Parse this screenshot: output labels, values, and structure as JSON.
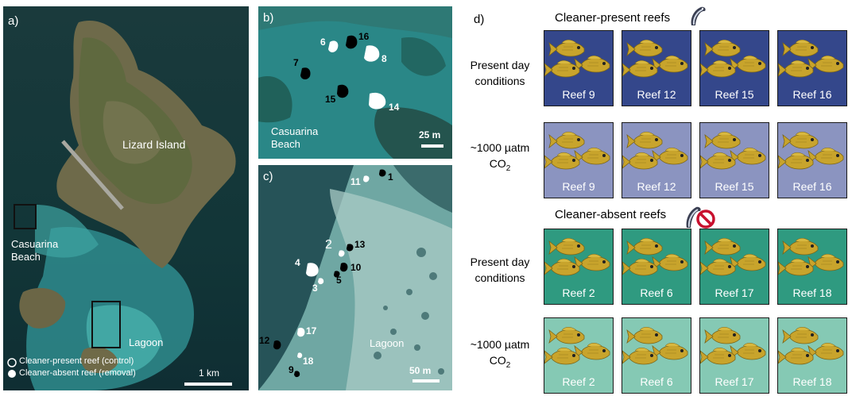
{
  "panel_a": {
    "letter": "a)",
    "island_label": "Lizard Island",
    "beach_label_1": "Casuarina",
    "beach_label_2": "Beach",
    "lagoon_label": "Lagoon",
    "legend_control": "Cleaner-present reef (control)",
    "legend_removal": "Cleaner-absent reef (removal)",
    "scale_label": "1 km"
  },
  "panel_b": {
    "letter": "b)",
    "beach_label_1": "Casuarina",
    "beach_label_2": "Beach",
    "scale_label": "25 m",
    "reef_numbers": {
      "r6": "6",
      "r16": "16",
      "r8": "8",
      "r7": "7",
      "r15": "15",
      "r14": "14"
    }
  },
  "panel_c": {
    "letter": "c)",
    "lagoon_label": "Lagoon",
    "scale_label": "50 m",
    "reef_numbers": {
      "r11": "11",
      "r1": "1",
      "r2": "2",
      "r13": "13",
      "r4": "4",
      "r10": "10",
      "r5": "5",
      "r3": "3",
      "r17": "17",
      "r12": "12",
      "r18": "18",
      "r9": "9"
    }
  },
  "panel_d": {
    "letter": "d)",
    "header_present": "Cleaner-present reefs",
    "header_absent": "Cleaner-absent reefs",
    "row_labels": {
      "present_day_1": "Present day",
      "present_day_2": "conditions",
      "co2_1": "~1000 µatm",
      "co2_2": "CO",
      "co2_sub": "2"
    },
    "rows": [
      {
        "reefs": [
          "Reef 9",
          "Reef 12",
          "Reef 15",
          "Reef 16"
        ]
      },
      {
        "reefs": [
          "Reef 9",
          "Reef 12",
          "Reef 15",
          "Reef 16"
        ]
      },
      {
        "reefs": [
          "Reef 2",
          "Reef 6",
          "Reef 17",
          "Reef 18"
        ]
      },
      {
        "reefs": [
          "Reef 2",
          "Reef 6",
          "Reef 17",
          "Reef 18"
        ]
      }
    ],
    "colors": {
      "present_day_cleaner": "#34478b",
      "co2_cleaner": "#8b94c0",
      "present_day_absent": "#2f9a80",
      "co2_absent": "#85c9b4",
      "fish": "#c8a42c"
    }
  }
}
